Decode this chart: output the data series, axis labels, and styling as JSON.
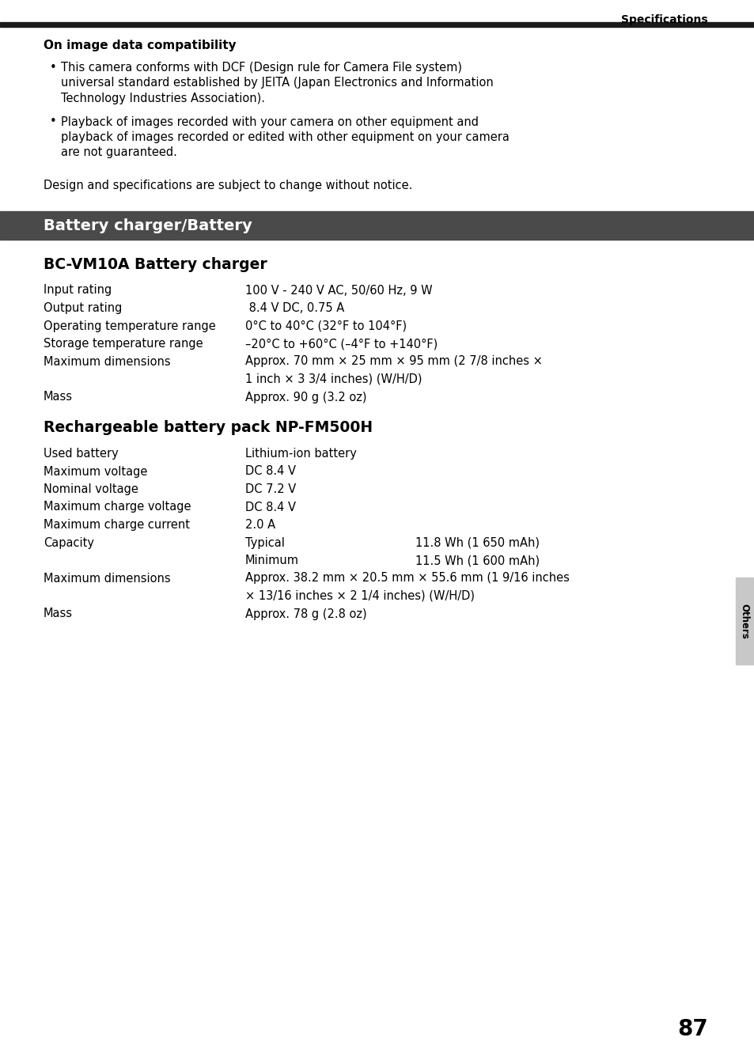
{
  "page_bg": "#ffffff",
  "top_bar_color": "#1a1a1a",
  "section_header_bg": "#4a4a4a",
  "section_header_text_color": "#ffffff",
  "header_label": "Specifications",
  "on_image_title": "On image data compatibility",
  "bullet1_lines": [
    "This camera conforms with DCF (Design rule for Camera File system)",
    "universal standard established by JEITA (Japan Electronics and Information",
    "Technology Industries Association)."
  ],
  "bullet2_lines": [
    "Playback of images recorded with your camera on other equipment and",
    "playback of images recorded or edited with other equipment on your camera",
    "are not guaranteed."
  ],
  "design_note": "Design and specifications are subject to change without notice.",
  "section_header_label": "Battery charger/Battery",
  "bc_title": "BC-VM10A Battery charger",
  "bc_specs": [
    [
      "Input rating",
      "100 V - 240 V AC, 50/60 Hz, 9 W",
      ""
    ],
    [
      "Output rating",
      " 8.4 V DC, 0.75 A",
      ""
    ],
    [
      "Operating temperature range",
      "0°C to 40°C (32°F to 104°F)",
      ""
    ],
    [
      "Storage temperature range",
      "–20°C to +60°C (–4°F to +140°F)",
      ""
    ],
    [
      "Maximum dimensions",
      "Approx. 70 mm × 25 mm × 95 mm (2 7/8 inches ×",
      ""
    ],
    [
      "",
      "1 inch × 3 3/4 inches) (W/H/D)",
      ""
    ],
    [
      "Mass",
      "Approx. 90 g (3.2 oz)",
      ""
    ]
  ],
  "np_title": "Rechargeable battery pack NP-FM500H",
  "np_specs": [
    [
      "Used battery",
      "Lithium-ion battery",
      ""
    ],
    [
      "Maximum voltage",
      "DC 8.4 V",
      ""
    ],
    [
      "Nominal voltage",
      "DC 7.2 V",
      ""
    ],
    [
      "Maximum charge voltage",
      "DC 8.4 V",
      ""
    ],
    [
      "Maximum charge current",
      "2.0 A",
      ""
    ],
    [
      "Capacity",
      "Typical",
      "11.8 Wh (1 650 mAh)"
    ],
    [
      "",
      "Minimum",
      "11.5 Wh (1 600 mAh)"
    ],
    [
      "Maximum dimensions",
      "Approx. 38.2 mm × 20.5 mm × 55.6 mm (1 9/16 inches",
      ""
    ],
    [
      "",
      "× 13/16 inches × 2 1/4 inches) (W/H/D)",
      ""
    ],
    [
      "Mass",
      "Approx. 78 g (2.8 oz)",
      ""
    ]
  ],
  "others_label": "Others",
  "page_number": "87",
  "right_tab_bg": "#c8c8c8",
  "font_size_body": 10.5,
  "font_size_title": 11,
  "font_size_section": 14,
  "font_size_h2": 13.5
}
